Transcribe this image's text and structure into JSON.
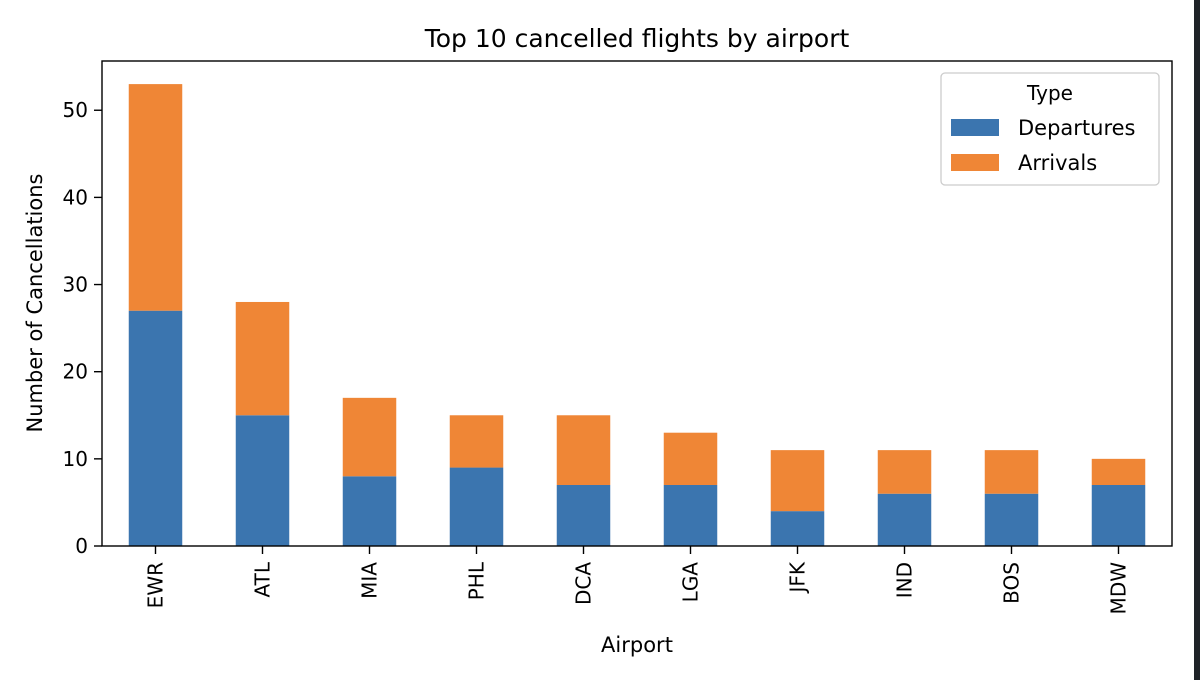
{
  "chart_data": {
    "type": "bar",
    "stacked": true,
    "title": "Top 10 cancelled flights by airport",
    "xlabel": "Airport",
    "ylabel": "Number of Cancellations",
    "categories": [
      "EWR",
      "ATL",
      "MIA",
      "PHL",
      "DCA",
      "LGA",
      "JFK",
      "IND",
      "BOS",
      "MDW"
    ],
    "series": [
      {
        "name": "Departures",
        "color": "#3b75af",
        "values": [
          27,
          15,
          8,
          9,
          7,
          7,
          4,
          6,
          6,
          7
        ]
      },
      {
        "name": "Arrivals",
        "color": "#ef8636",
        "values": [
          26,
          13,
          9,
          6,
          8,
          6,
          7,
          5,
          5,
          3
        ]
      }
    ],
    "ylim": [
      0,
      55.65
    ],
    "yticks": [
      0,
      10,
      20,
      30,
      40,
      50
    ],
    "grid": false,
    "legend": {
      "title": "Type",
      "placement": "top-right"
    }
  }
}
